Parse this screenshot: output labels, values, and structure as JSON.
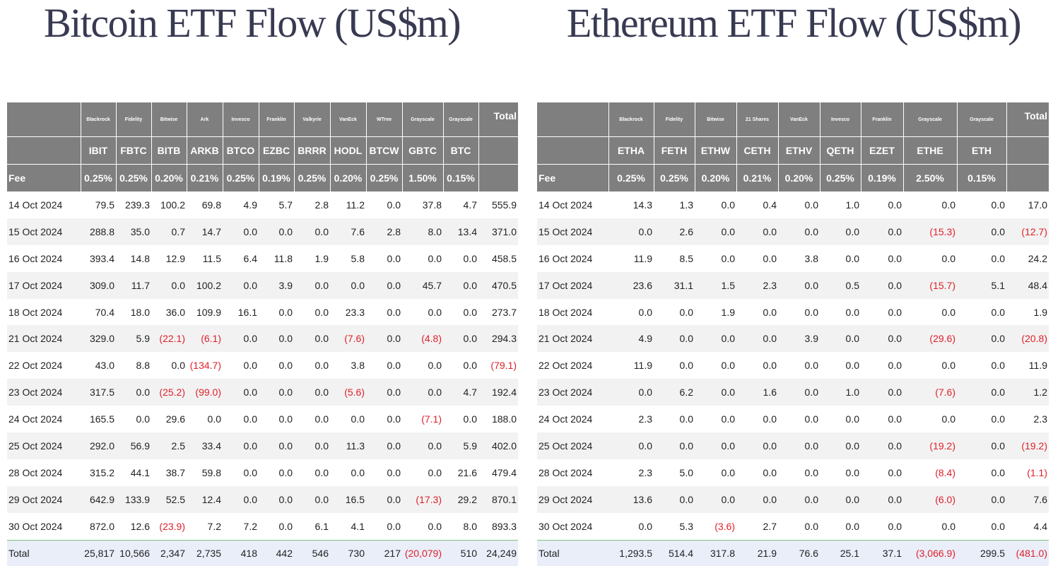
{
  "btc": {
    "title": "Bitcoin ETF Flow (US$m)",
    "total_label": "Total",
    "fee_label": "Fee",
    "footer_label": "Total",
    "issuers": [
      "Blackrock",
      "Fidelity",
      "Bitwise",
      "Ark",
      "Invesco",
      "Franklin",
      "Valkyrie",
      "VanEck",
      "WTree",
      "Grayscale",
      "Grayscale"
    ],
    "tickers": [
      "IBIT",
      "FBTC",
      "BITB",
      "ARKB",
      "BTCO",
      "EZBC",
      "BRRR",
      "HODL",
      "BTCW",
      "GBTC",
      "BTC"
    ],
    "fees": [
      "0.25%",
      "0.25%",
      "0.20%",
      "0.21%",
      "0.25%",
      "0.19%",
      "0.25%",
      "0.20%",
      "0.25%",
      "1.50%",
      "0.15%"
    ],
    "rows": [
      [
        "14 Oct 2024",
        "79.5",
        "239.3",
        "100.2",
        "69.8",
        "4.9",
        "5.7",
        "2.8",
        "11.2",
        "0.0",
        "37.8",
        "4.7",
        "555.9"
      ],
      [
        "15 Oct 2024",
        "288.8",
        "35.0",
        "0.7",
        "14.7",
        "0.0",
        "0.0",
        "0.0",
        "7.6",
        "2.8",
        "8.0",
        "13.4",
        "371.0"
      ],
      [
        "16 Oct 2024",
        "393.4",
        "14.8",
        "12.9",
        "11.5",
        "6.4",
        "11.8",
        "1.9",
        "5.8",
        "0.0",
        "0.0",
        "0.0",
        "458.5"
      ],
      [
        "17 Oct 2024",
        "309.0",
        "11.7",
        "0.0",
        "100.2",
        "0.0",
        "3.9",
        "0.0",
        "0.0",
        "0.0",
        "45.7",
        "0.0",
        "470.5"
      ],
      [
        "18 Oct 2024",
        "70.4",
        "18.0",
        "36.0",
        "109.9",
        "16.1",
        "0.0",
        "0.0",
        "23.3",
        "0.0",
        "0.0",
        "0.0",
        "273.7"
      ],
      [
        "21 Oct 2024",
        "329.0",
        "5.9",
        "(22.1)",
        "(6.1)",
        "0.0",
        "0.0",
        "0.0",
        "(7.6)",
        "0.0",
        "(4.8)",
        "0.0",
        "294.3"
      ],
      [
        "22 Oct 2024",
        "43.0",
        "8.8",
        "0.0",
        "(134.7)",
        "0.0",
        "0.0",
        "0.0",
        "3.8",
        "0.0",
        "0.0",
        "0.0",
        "(79.1)"
      ],
      [
        "23 Oct 2024",
        "317.5",
        "0.0",
        "(25.2)",
        "(99.0)",
        "0.0",
        "0.0",
        "0.0",
        "(5.6)",
        "0.0",
        "0.0",
        "4.7",
        "192.4"
      ],
      [
        "24 Oct 2024",
        "165.5",
        "0.0",
        "29.6",
        "0.0",
        "0.0",
        "0.0",
        "0.0",
        "0.0",
        "0.0",
        "(7.1)",
        "0.0",
        "188.0"
      ],
      [
        "25 Oct 2024",
        "292.0",
        "56.9",
        "2.5",
        "33.4",
        "0.0",
        "0.0",
        "0.0",
        "11.3",
        "0.0",
        "0.0",
        "5.9",
        "402.0"
      ],
      [
        "28 Oct 2024",
        "315.2",
        "44.1",
        "38.7",
        "59.8",
        "0.0",
        "0.0",
        "0.0",
        "0.0",
        "0.0",
        "0.0",
        "21.6",
        "479.4"
      ],
      [
        "29 Oct 2024",
        "642.9",
        "133.9",
        "52.5",
        "12.4",
        "0.0",
        "0.0",
        "0.0",
        "16.5",
        "0.0",
        "(17.3)",
        "29.2",
        "870.1"
      ],
      [
        "30 Oct 2024",
        "872.0",
        "12.6",
        "(23.9)",
        "7.2",
        "7.2",
        "0.0",
        "6.1",
        "4.1",
        "0.0",
        "0.0",
        "8.0",
        "893.3"
      ]
    ],
    "totals": [
      "25,817",
      "10,566",
      "2,347",
      "2,735",
      "418",
      "442",
      "546",
      "730",
      "217",
      "(20,079)",
      "510",
      "24,249"
    ]
  },
  "eth": {
    "title": "Ethereum ETF Flow (US$m)",
    "total_label": "Total",
    "fee_label": "Fee",
    "footer_label": "Total",
    "issuers": [
      "Blackrock",
      "Fidelity",
      "Bitwise",
      "21 Shares",
      "VanEck",
      "Invesco",
      "Franklin",
      "Grayscale",
      "Grayscale"
    ],
    "tickers": [
      "ETHA",
      "FETH",
      "ETHW",
      "CETH",
      "ETHV",
      "QETH",
      "EZET",
      "ETHE",
      "ETH"
    ],
    "fees": [
      "0.25%",
      "0.25%",
      "0.20%",
      "0.21%",
      "0.20%",
      "0.25%",
      "0.19%",
      "2.50%",
      "0.15%"
    ],
    "rows": [
      [
        "14 Oct 2024",
        "14.3",
        "1.3",
        "0.0",
        "0.4",
        "0.0",
        "1.0",
        "0.0",
        "0.0",
        "0.0",
        "17.0"
      ],
      [
        "15 Oct 2024",
        "0.0",
        "2.6",
        "0.0",
        "0.0",
        "0.0",
        "0.0",
        "0.0",
        "(15.3)",
        "0.0",
        "(12.7)"
      ],
      [
        "16 Oct 2024",
        "11.9",
        "8.5",
        "0.0",
        "0.0",
        "3.8",
        "0.0",
        "0.0",
        "0.0",
        "0.0",
        "24.2"
      ],
      [
        "17 Oct 2024",
        "23.6",
        "31.1",
        "1.5",
        "2.3",
        "0.0",
        "0.5",
        "0.0",
        "(15.7)",
        "5.1",
        "48.4"
      ],
      [
        "18 Oct 2024",
        "0.0",
        "0.0",
        "1.9",
        "0.0",
        "0.0",
        "0.0",
        "0.0",
        "0.0",
        "0.0",
        "1.9"
      ],
      [
        "21 Oct 2024",
        "4.9",
        "0.0",
        "0.0",
        "0.0",
        "3.9",
        "0.0",
        "0.0",
        "(29.6)",
        "0.0",
        "(20.8)"
      ],
      [
        "22 Oct 2024",
        "11.9",
        "0.0",
        "0.0",
        "0.0",
        "0.0",
        "0.0",
        "0.0",
        "0.0",
        "0.0",
        "11.9"
      ],
      [
        "23 Oct 2024",
        "0.0",
        "6.2",
        "0.0",
        "1.6",
        "0.0",
        "1.0",
        "0.0",
        "(7.6)",
        "0.0",
        "1.2"
      ],
      [
        "24 Oct 2024",
        "2.3",
        "0.0",
        "0.0",
        "0.0",
        "0.0",
        "0.0",
        "0.0",
        "0.0",
        "0.0",
        "2.3"
      ],
      [
        "25 Oct 2024",
        "0.0",
        "0.0",
        "0.0",
        "0.0",
        "0.0",
        "0.0",
        "0.0",
        "(19.2)",
        "0.0",
        "(19.2)"
      ],
      [
        "28 Oct 2024",
        "2.3",
        "5.0",
        "0.0",
        "0.0",
        "0.0",
        "0.0",
        "0.0",
        "(8.4)",
        "0.0",
        "(1.1)"
      ],
      [
        "29 Oct 2024",
        "13.6",
        "0.0",
        "0.0",
        "0.0",
        "0.0",
        "0.0",
        "0.0",
        "(6.0)",
        "0.0",
        "7.6"
      ],
      [
        "30 Oct 2024",
        "0.0",
        "5.3",
        "(3.6)",
        "2.7",
        "0.0",
        "0.0",
        "0.0",
        "0.0",
        "0.0",
        "4.4"
      ]
    ],
    "totals": [
      "1,293.5",
      "514.4",
      "317.8",
      "21.9",
      "76.6",
      "25.1",
      "37.1",
      "(3,066.9)",
      "299.5",
      "(481.0)"
    ]
  },
  "colors": {
    "header_bg": "#7f7f7f",
    "negative": "#e0202a",
    "total_row_bg": "#e9eef9",
    "title": "#383a52"
  }
}
